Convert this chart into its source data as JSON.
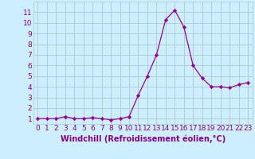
{
  "x": [
    0,
    1,
    2,
    3,
    4,
    5,
    6,
    7,
    8,
    9,
    10,
    11,
    12,
    13,
    14,
    15,
    16,
    17,
    18,
    19,
    20,
    21,
    22,
    23
  ],
  "y": [
    1.0,
    1.0,
    1.0,
    1.2,
    1.0,
    1.0,
    1.1,
    1.0,
    0.9,
    1.0,
    1.2,
    3.2,
    5.0,
    7.0,
    10.3,
    11.2,
    9.6,
    6.0,
    4.8,
    4.0,
    4.0,
    3.9,
    4.2,
    4.4
  ],
  "line_color": "#990099",
  "marker": "D",
  "marker_size": 2.2,
  "bg_color": "#cceeff",
  "grid_color": "#aacccc",
  "xlabel": "Windchill (Refroidissement éolien,°C)",
  "xlabel_color": "#880088",
  "tick_color": "#880088",
  "ylim": [
    0.5,
    12
  ],
  "xlim": [
    -0.5,
    23.5
  ],
  "yticks": [
    1,
    2,
    3,
    4,
    5,
    6,
    7,
    8,
    9,
    10,
    11
  ],
  "xticks": [
    0,
    1,
    2,
    3,
    4,
    5,
    6,
    7,
    8,
    9,
    10,
    11,
    12,
    13,
    14,
    15,
    16,
    17,
    18,
    19,
    20,
    21,
    22,
    23
  ],
  "font_size": 6.5,
  "xlabel_font_size": 7.0
}
